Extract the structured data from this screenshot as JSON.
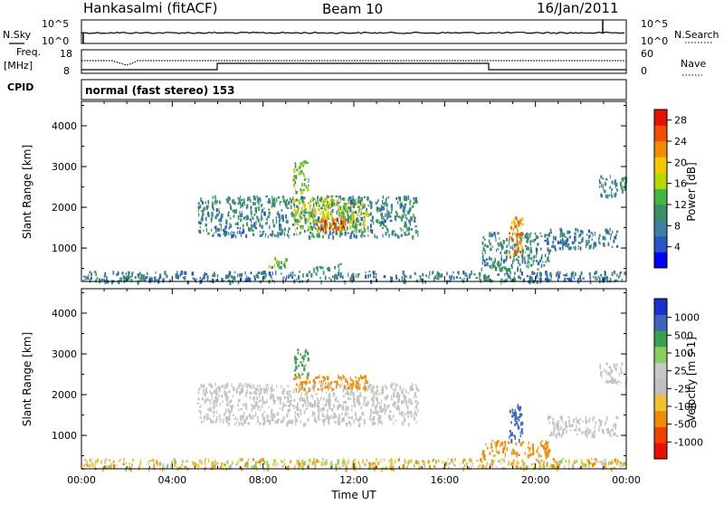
{
  "header": {
    "title": "Hankasalmi (fitACF)",
    "beam": "Beam 10",
    "date": "16/Jan/2011"
  },
  "top_panels": {
    "nsky_label": "N.Sky",
    "nsearch_label": "N.Search",
    "nsky_ticks": [
      "10^5",
      "10^0"
    ],
    "nsearch_ticks": [
      "10^5",
      "10^0"
    ],
    "freq_label": "Freq.",
    "freq_unit": "[MHz]",
    "freq_ticks": [
      "18",
      "8"
    ],
    "nave_label": "Nave",
    "nave_ticks": [
      "60",
      "0"
    ],
    "cpid_label": "CPID",
    "cpid_text": "normal (fast stereo) 153"
  },
  "colors": {
    "power_scale": [
      "#0000ff",
      "#2a55c8",
      "#3f7fa0",
      "#3a8f66",
      "#42b843",
      "#b8d800",
      "#f2c800",
      "#f08c00",
      "#f05000",
      "#e81000"
    ],
    "velocity_scale": [
      "#1a2fd0",
      "#3a66c0",
      "#3aa050",
      "#86d060",
      "#c8c8c8",
      "#c0c0c0",
      "#f2c030",
      "#f08c00",
      "#f04000",
      "#e81000"
    ],
    "ground_scatter": "#c4c4c0"
  },
  "chart_data": [
    {
      "type": "heatmap",
      "quantity": "Power",
      "ylabel": "Slant Range [km]",
      "xlim": [
        "00:00",
        "24:00"
      ],
      "ylim": [
        180,
        4600
      ],
      "yticks": [
        1000,
        2000,
        3000,
        4000
      ],
      "colorbar": {
        "label": "Power [dB]",
        "ticks": [
          4,
          8,
          12,
          16,
          20,
          24,
          28
        ],
        "range": [
          0,
          30
        ]
      },
      "regions": [
        {
          "t0": 0.0,
          "t1": 24.0,
          "r0": 200,
          "r1": 450,
          "value": 8
        },
        {
          "t0": 5.1,
          "t1": 14.8,
          "r0": 1300,
          "r1": 2300,
          "value": 9
        },
        {
          "t0": 9.3,
          "t1": 12.6,
          "r0": 1450,
          "r1": 2250,
          "value": 17
        },
        {
          "t0": 10.3,
          "t1": 11.6,
          "r0": 1450,
          "r1": 1800,
          "value": 25
        },
        {
          "t0": 9.3,
          "t1": 10.0,
          "r0": 2400,
          "r1": 3150,
          "value": 14
        },
        {
          "t0": 8.1,
          "t1": 9.0,
          "r0": 550,
          "r1": 800,
          "value": 14
        },
        {
          "t0": 10.2,
          "t1": 11.4,
          "r0": 480,
          "r1": 650,
          "value": 10
        },
        {
          "t0": 17.6,
          "t1": 20.6,
          "r0": 500,
          "r1": 1400,
          "value": 9
        },
        {
          "t0": 18.8,
          "t1": 19.4,
          "r0": 800,
          "r1": 1800,
          "value": 22
        },
        {
          "t0": 20.5,
          "t1": 23.6,
          "r0": 1000,
          "r1": 1500,
          "value": 8
        },
        {
          "t0": 22.8,
          "t1": 24.0,
          "r0": 2300,
          "r1": 2800,
          "value": 9
        }
      ]
    },
    {
      "type": "heatmap",
      "quantity": "Velocity",
      "ylabel": "Slant Range [km]",
      "xlabel": "Time UT",
      "xticks": [
        "00:00",
        "04:00",
        "08:00",
        "12:00",
        "16:00",
        "20:00",
        "00:00"
      ],
      "xlim": [
        "00:00",
        "24:00"
      ],
      "ylim": [
        180,
        4600
      ],
      "yticks": [
        1000,
        2000,
        3000,
        4000
      ],
      "colorbar": {
        "label": "Velocity [m s-1]",
        "ticks": [
          "1000",
          "500",
          "100",
          "25",
          "-25",
          "-100",
          "-500",
          "-1000"
        ]
      },
      "regions": [
        {
          "t0": 0.0,
          "t1": 24.0,
          "r0": 200,
          "r1": 450,
          "value": "mixed"
        },
        {
          "t0": 5.1,
          "t1": 14.8,
          "r0": 1300,
          "r1": 2300,
          "value": "ground-scatter"
        },
        {
          "t0": 9.3,
          "t1": 12.6,
          "r0": 2150,
          "r1": 2500,
          "value": -300
        },
        {
          "t0": 9.3,
          "t1": 10.0,
          "r0": 2500,
          "r1": 3150,
          "value": 150
        },
        {
          "t0": 17.6,
          "t1": 20.6,
          "r0": 500,
          "r1": 900,
          "value": -200
        },
        {
          "t0": 18.8,
          "t1": 19.4,
          "r0": 900,
          "r1": 1800,
          "value": 600
        },
        {
          "t0": 20.5,
          "t1": 23.6,
          "r0": 1000,
          "r1": 1500,
          "value": "ground-scatter"
        },
        {
          "t0": 22.8,
          "t1": 24.0,
          "r0": 2300,
          "r1": 2800,
          "value": "ground-scatter"
        }
      ]
    }
  ]
}
